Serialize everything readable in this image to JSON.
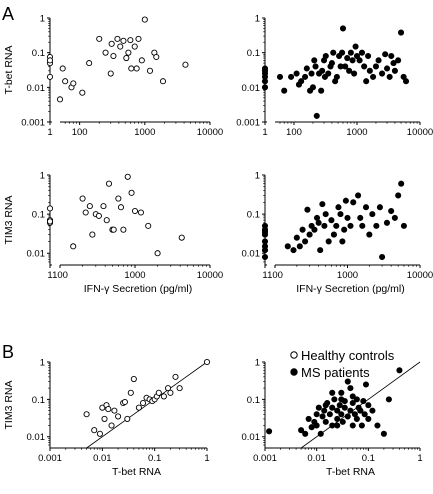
{
  "panel_labels": [
    "A",
    "B"
  ],
  "chart_data": [
    {
      "type": "scatter",
      "id": "a-tl",
      "marker": "open",
      "xlabel": "",
      "ylabel": "T-bet RNA",
      "xscale": "log-broken",
      "yscale": "log",
      "xlim_break": [
        1,
        50,
        10000
      ],
      "ylim": [
        0.001,
        1
      ],
      "xticks": [
        "1",
        "100",
        "1000",
        "10000"
      ],
      "yticks": [
        "0.001",
        "0.01",
        "0.1",
        "1"
      ],
      "x": [
        1,
        1,
        1,
        1,
        50,
        55,
        60,
        75,
        80,
        110,
        140,
        200,
        250,
        300,
        310,
        330,
        380,
        420,
        470,
        520,
        560,
        600,
        620,
        700,
        750,
        800,
        900,
        1000,
        1200,
        1400,
        1500,
        1900,
        4200
      ],
      "y": [
        0.075,
        0.05,
        0.02,
        0.06,
        0.0045,
        0.035,
        0.015,
        0.01,
        0.013,
        0.007,
        0.05,
        0.25,
        0.1,
        0.025,
        0.18,
        0.08,
        0.25,
        0.15,
        0.22,
        0.07,
        0.1,
        0.23,
        0.035,
        0.15,
        0.035,
        0.25,
        0.06,
        0.9,
        0.03,
        0.1,
        0.075,
        0.015,
        0.045
      ]
    },
    {
      "type": "scatter",
      "id": "a-tr",
      "marker": "filled",
      "xlabel": "",
      "ylabel": "",
      "xscale": "log-broken",
      "yscale": "log",
      "xlim_break": [
        1,
        50,
        10000
      ],
      "ylim": [
        0.001,
        1
      ],
      "xticks": [
        "1",
        "100",
        "1000",
        "10000"
      ],
      "yticks": [
        "0.001",
        "0.01",
        "0.1",
        "1"
      ],
      "x": [
        1,
        1,
        1,
        1,
        1,
        1,
        60,
        70,
        90,
        110,
        120,
        130,
        150,
        160,
        180,
        190,
        200,
        210,
        220,
        230,
        250,
        270,
        280,
        300,
        310,
        320,
        350,
        380,
        400,
        420,
        450,
        480,
        520,
        550,
        580,
        600,
        650,
        700,
        750,
        800,
        850,
        900,
        950,
        1000,
        1100,
        1200,
        1300,
        1400,
        1500,
        1600,
        1800,
        2000,
        2200,
        2500,
        2800,
        3000,
        3300,
        3500,
        3800,
        4000,
        4500,
        5000,
        5500,
        6000
      ],
      "y": [
        0.01,
        0.015,
        0.02,
        0.025,
        0.03,
        0.035,
        0.02,
        0.008,
        0.02,
        0.025,
        0.012,
        0.015,
        0.02,
        0.035,
        0.008,
        0.025,
        0.01,
        0.06,
        0.04,
        0.0015,
        0.025,
        0.008,
        0.03,
        0.06,
        0.02,
        0.08,
        0.025,
        0.04,
        0.05,
        0.1,
        0.015,
        0.02,
        0.08,
        0.04,
        0.1,
        0.5,
        0.04,
        0.07,
        0.03,
        0.1,
        0.06,
        0.025,
        0.15,
        0.08,
        0.06,
        0.1,
        0.04,
        0.015,
        0.08,
        0.03,
        0.02,
        0.04,
        0.06,
        0.025,
        0.09,
        0.035,
        0.02,
        0.08,
        0.05,
        0.03,
        0.06,
        0.38,
        0.02,
        0.015
      ]
    },
    {
      "type": "scatter",
      "id": "a-bl",
      "marker": "open",
      "xlabel": "IFN-γ Secretion (pg/ml)",
      "ylabel": "TIM3 RNA",
      "xscale": "log-broken",
      "yscale": "log",
      "xlim_break": [
        1,
        100,
        10000
      ],
      "ylim": [
        0.005,
        1
      ],
      "xticks": [
        "1",
        "100",
        "1000",
        "10000"
      ],
      "yticks": [
        "0.01",
        "0.1",
        "1"
      ],
      "x": [
        1,
        1,
        1,
        1,
        150,
        200,
        220,
        250,
        270,
        300,
        330,
        380,
        420,
        450,
        500,
        520,
        600,
        650,
        700,
        800,
        900,
        1000,
        1200,
        1500,
        2000,
        4200
      ],
      "y": [
        0.14,
        0.07,
        0.06,
        0.065,
        0.015,
        0.25,
        0.11,
        0.16,
        0.03,
        0.1,
        0.09,
        0.16,
        0.07,
        0.6,
        0.04,
        0.04,
        0.25,
        0.15,
        0.04,
        0.9,
        0.35,
        0.12,
        0.11,
        0.05,
        0.01,
        0.025
      ]
    },
    {
      "type": "scatter",
      "id": "a-br",
      "marker": "filled",
      "xlabel": "IFN-γ Secretion (pg/ml)",
      "ylabel": "",
      "xscale": "log-broken",
      "yscale": "log",
      "xlim_break": [
        1,
        100,
        10000
      ],
      "ylim": [
        0.005,
        1
      ],
      "xticks": [
        "1",
        "100",
        "1000",
        "10000"
      ],
      "yticks": [
        "0.01",
        "0.1",
        "1"
      ],
      "x": [
        1,
        1,
        1,
        1,
        1,
        1,
        1,
        1,
        150,
        180,
        200,
        220,
        240,
        260,
        280,
        300,
        320,
        350,
        380,
        400,
        420,
        450,
        480,
        500,
        550,
        600,
        650,
        700,
        750,
        800,
        850,
        900,
        950,
        1000,
        1100,
        1200,
        1400,
        1500,
        1600,
        1800,
        2000,
        2200,
        2500,
        2800,
        3000,
        3500,
        4000,
        4500,
        5000,
        5500,
        6000
      ],
      "y": [
        0.05,
        0.04,
        0.03,
        0.02,
        0.015,
        0.012,
        0.008,
        0.035,
        0.015,
        0.012,
        0.025,
        0.015,
        0.04,
        0.02,
        0.13,
        0.03,
        0.05,
        0.04,
        0.08,
        0.06,
        0.012,
        0.18,
        0.05,
        0.1,
        0.02,
        0.07,
        0.03,
        0.05,
        0.15,
        0.1,
        0.02,
        0.04,
        0.22,
        0.08,
        0.05,
        0.2,
        0.3,
        0.08,
        0.05,
        0.15,
        0.03,
        0.1,
        0.05,
        0.15,
        0.008,
        0.06,
        0.12,
        0.08,
        0.3,
        0.6,
        0.05
      ]
    },
    {
      "type": "scatter",
      "id": "b-l",
      "marker": "open",
      "xlabel": "T-bet RNA",
      "ylabel": "TIM3 RNA",
      "xscale": "log",
      "yscale": "log",
      "xlim": [
        0.001,
        1
      ],
      "ylim": [
        0.005,
        1
      ],
      "xticks": [
        "0.001",
        "0.01",
        "0.1",
        "1"
      ],
      "yticks": [
        "0.01",
        "0.1",
        "1"
      ],
      "fit_line": [
        [
          0.005,
          0.005
        ],
        [
          1,
          1
        ]
      ],
      "x": [
        0.005,
        0.007,
        0.009,
        0.01,
        0.011,
        0.012,
        0.013,
        0.015,
        0.017,
        0.02,
        0.025,
        0.027,
        0.03,
        0.035,
        0.04,
        0.05,
        0.06,
        0.07,
        0.08,
        0.09,
        0.1,
        0.11,
        0.12,
        0.15,
        0.18,
        0.2,
        0.25,
        0.3,
        1.0
      ],
      "y": [
        0.04,
        0.015,
        0.012,
        0.06,
        0.03,
        0.07,
        0.055,
        0.02,
        0.05,
        0.035,
        0.08,
        0.085,
        0.03,
        0.15,
        0.35,
        0.06,
        0.08,
        0.11,
        0.1,
        0.09,
        0.1,
        0.12,
        0.15,
        0.12,
        0.2,
        0.15,
        0.4,
        0.2,
        1.0
      ]
    },
    {
      "type": "scatter",
      "id": "b-r",
      "marker": "filled",
      "xlabel": "T-bet RNA",
      "ylabel": "",
      "xscale": "log",
      "yscale": "log",
      "xlim": [
        0.001,
        1
      ],
      "ylim": [
        0.005,
        1
      ],
      "xticks": [
        "0.001",
        "0.01",
        "0.1",
        "1"
      ],
      "yticks": [
        "0.01",
        "0.1",
        "1"
      ],
      "fit_line": [
        [
          0.005,
          0.005
        ],
        [
          1,
          1
        ]
      ],
      "x": [
        0.0012,
        0.005,
        0.006,
        0.007,
        0.008,
        0.009,
        0.01,
        0.01,
        0.011,
        0.012,
        0.013,
        0.014,
        0.015,
        0.016,
        0.018,
        0.02,
        0.02,
        0.022,
        0.025,
        0.025,
        0.028,
        0.03,
        0.03,
        0.032,
        0.035,
        0.035,
        0.04,
        0.04,
        0.045,
        0.05,
        0.05,
        0.055,
        0.06,
        0.06,
        0.065,
        0.07,
        0.075,
        0.08,
        0.085,
        0.09,
        0.1,
        0.1,
        0.12,
        0.15,
        0.2,
        0.25,
        0.4,
        0.02,
        0.03,
        0.05,
        0.07,
        0.015,
        0.025,
        0.045
      ],
      "y": [
        0.014,
        0.015,
        0.012,
        0.03,
        0.018,
        0.025,
        0.02,
        0.04,
        0.06,
        0.012,
        0.035,
        0.05,
        0.025,
        0.08,
        0.04,
        0.02,
        0.06,
        0.1,
        0.03,
        0.05,
        0.07,
        0.04,
        0.15,
        0.025,
        0.06,
        0.09,
        0.035,
        0.3,
        0.05,
        0.02,
        0.08,
        0.04,
        0.03,
        0.1,
        0.06,
        0.05,
        0.02,
        0.09,
        0.04,
        0.25,
        0.07,
        0.03,
        0.05,
        0.02,
        0.012,
        0.1,
        0.6,
        0.15,
        0.1,
        0.12,
        0.05,
        0.07,
        0.02,
        0.2
      ]
    }
  ],
  "legend": [
    {
      "label": "Healthy controls",
      "marker": "open"
    },
    {
      "label": "MS patients",
      "marker": "filled"
    }
  ]
}
